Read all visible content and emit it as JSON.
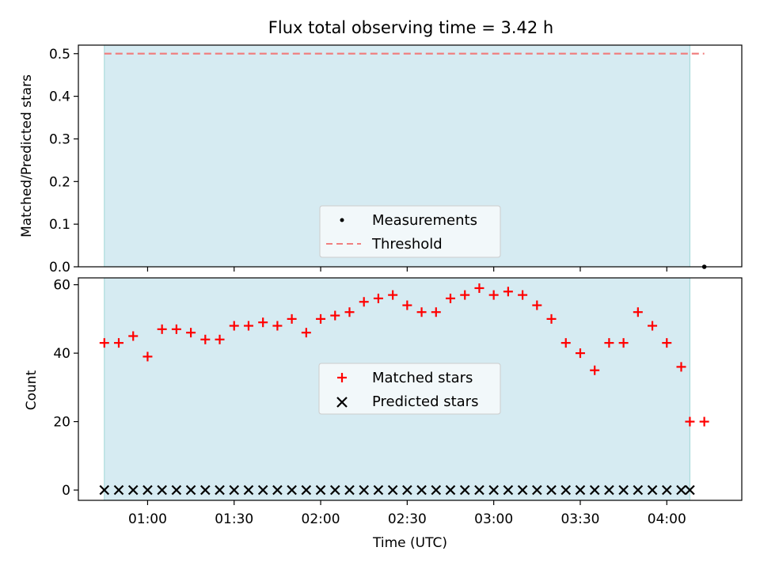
{
  "chart_data": [
    {
      "type": "scatter",
      "title": "Flux total observing time = 3.42 h",
      "xlabel": "",
      "ylabel": "Matched/Predicted stars",
      "ylim": [
        0,
        0.52
      ],
      "yticks": [
        "0.0",
        "0.1",
        "0.2",
        "0.3",
        "0.4",
        "0.5"
      ],
      "xlim": [
        "00:36",
        "04:26"
      ],
      "legend_position": "lower-center",
      "grid": false,
      "shaded_interval": [
        "00:45",
        "04:08"
      ],
      "series": [
        {
          "name": "Measurements",
          "marker": "dot",
          "color": "#000000",
          "x": [
            "04:13"
          ],
          "y": [
            0.0
          ]
        },
        {
          "name": "Threshold",
          "style": "dashed-line",
          "color": "#f08080",
          "x": [
            "00:45",
            "04:13"
          ],
          "y": [
            0.5,
            0.5
          ]
        }
      ]
    },
    {
      "type": "scatter",
      "xlabel": "Time (UTC)",
      "ylabel": "Count",
      "ylim": [
        -3,
        62
      ],
      "yticks": [
        "0",
        "20",
        "40",
        "60"
      ],
      "xlim": [
        "00:36",
        "04:26"
      ],
      "xticks": [
        "01:00",
        "01:30",
        "02:00",
        "02:30",
        "03:00",
        "03:30",
        "04:00"
      ],
      "legend_position": "center",
      "grid": false,
      "shaded_interval": [
        "00:45",
        "04:08"
      ],
      "series": [
        {
          "name": "Matched stars",
          "marker": "+",
          "color": "#ff0000",
          "x": [
            "00:45",
            "00:50",
            "00:55",
            "01:00",
            "01:05",
            "01:10",
            "01:15",
            "01:20",
            "01:25",
            "01:30",
            "01:35",
            "01:40",
            "01:45",
            "01:50",
            "01:55",
            "02:00",
            "02:05",
            "02:10",
            "02:15",
            "02:20",
            "02:25",
            "02:30",
            "02:35",
            "02:40",
            "02:45",
            "02:50",
            "02:55",
            "03:00",
            "03:05",
            "03:10",
            "03:15",
            "03:20",
            "03:25",
            "03:30",
            "03:35",
            "03:40",
            "03:45",
            "03:50",
            "03:55",
            "04:00",
            "04:05",
            "04:08",
            "04:13"
          ],
          "y": [
            43,
            43,
            45,
            39,
            47,
            47,
            46,
            44,
            44,
            48,
            48,
            49,
            48,
            50,
            46,
            50,
            51,
            52,
            55,
            56,
            57,
            54,
            52,
            52,
            56,
            57,
            59,
            57,
            58,
            57,
            54,
            50,
            43,
            40,
            35,
            43,
            43,
            52,
            48,
            43,
            36,
            20,
            20
          ]
        },
        {
          "name": "Predicted stars",
          "marker": "x",
          "color": "#000000",
          "x": [
            "00:45",
            "00:50",
            "00:55",
            "01:00",
            "01:05",
            "01:10",
            "01:15",
            "01:20",
            "01:25",
            "01:30",
            "01:35",
            "01:40",
            "01:45",
            "01:50",
            "01:55",
            "02:00",
            "02:05",
            "02:10",
            "02:15",
            "02:20",
            "02:25",
            "02:30",
            "02:35",
            "02:40",
            "02:45",
            "02:50",
            "02:55",
            "03:00",
            "03:05",
            "03:10",
            "03:15",
            "03:20",
            "03:25",
            "03:30",
            "03:35",
            "03:40",
            "03:45",
            "03:50",
            "03:55",
            "04:00",
            "04:05",
            "04:08"
          ],
          "y": [
            0,
            0,
            0,
            0,
            0,
            0,
            0,
            0,
            0,
            0,
            0,
            0,
            0,
            0,
            0,
            0,
            0,
            0,
            0,
            0,
            0,
            0,
            0,
            0,
            0,
            0,
            0,
            0,
            0,
            0,
            0,
            0,
            0,
            0,
            0,
            0,
            0,
            0,
            0,
            0,
            0,
            0
          ]
        }
      ]
    }
  ]
}
